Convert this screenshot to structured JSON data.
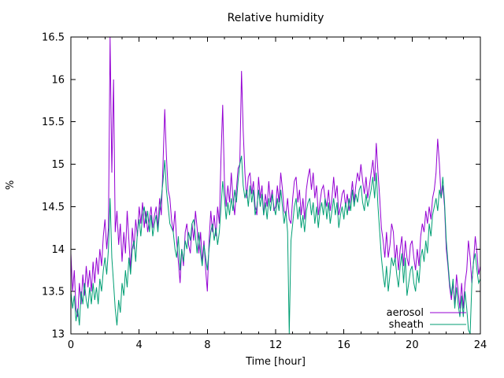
{
  "title": "Relative humidity",
  "chart_data": {
    "type": "line",
    "title": "Relative humidity",
    "xlabel": "Time [hour]",
    "ylabel": "%",
    "xlim": [
      0,
      24
    ],
    "ylim": [
      13,
      16.5
    ],
    "grid": false,
    "legend_position": "bottom-right",
    "x_major_ticks": [
      0,
      4,
      8,
      12,
      16,
      20,
      24
    ],
    "x_tick_labels": [
      "0",
      "4",
      "8",
      "12",
      "16",
      "20",
      "24"
    ],
    "x_minor_step": 1,
    "y_major_ticks": [
      13,
      13.5,
      14,
      14.5,
      15,
      15.5,
      16,
      16.5
    ],
    "y_tick_labels": [
      "13",
      "13.5",
      "14",
      "14.5",
      "15",
      "15.5",
      "16",
      "16.5"
    ],
    "x_start": 0,
    "x_step": 0.1,
    "series": [
      {
        "name": "aerosol",
        "color": "#9400D3",
        "values": [
          13.95,
          13.5,
          13.75,
          13.3,
          13.2,
          13.6,
          13.35,
          13.7,
          13.45,
          13.8,
          13.55,
          13.75,
          13.5,
          13.85,
          13.6,
          13.9,
          13.7,
          14.0,
          13.8,
          14.15,
          14.35,
          14.0,
          14.25,
          16.5,
          14.9,
          16.0,
          14.2,
          14.45,
          14.05,
          14.3,
          13.85,
          14.2,
          13.95,
          14.45,
          14.1,
          13.75,
          14.25,
          14.0,
          14.35,
          14.15,
          14.5,
          14.3,
          14.55,
          14.25,
          14.45,
          14.2,
          14.35,
          14.5,
          14.25,
          14.4,
          14.5,
          14.25,
          14.6,
          14.4,
          15.0,
          15.65,
          15.1,
          14.7,
          14.6,
          14.35,
          14.2,
          14.45,
          14.1,
          13.85,
          13.6,
          14.0,
          13.8,
          14.2,
          14.3,
          14.05,
          13.95,
          14.3,
          14.1,
          14.45,
          14.25,
          13.95,
          14.2,
          13.85,
          14.1,
          13.75,
          13.5,
          14.1,
          14.45,
          14.2,
          14.4,
          14.15,
          14.5,
          14.3,
          15.1,
          15.7,
          14.8,
          14.5,
          14.75,
          14.55,
          14.9,
          14.6,
          14.4,
          14.7,
          14.95,
          15.0,
          16.1,
          15.4,
          14.9,
          14.6,
          14.85,
          14.9,
          14.65,
          14.8,
          14.5,
          14.4,
          14.85,
          14.6,
          14.75,
          14.4,
          14.65,
          14.5,
          14.8,
          14.55,
          14.7,
          14.45,
          14.5,
          14.75,
          14.55,
          14.9,
          14.7,
          14.45,
          14.4,
          14.6,
          14.35,
          14.3,
          14.6,
          14.8,
          14.85,
          14.55,
          14.7,
          14.4,
          14.6,
          14.35,
          14.7,
          14.85,
          14.95,
          14.7,
          14.9,
          14.6,
          14.75,
          14.4,
          14.55,
          14.7,
          14.75,
          14.6,
          14.5,
          14.7,
          14.45,
          14.6,
          14.85,
          14.6,
          14.75,
          14.4,
          14.5,
          14.65,
          14.7,
          14.5,
          14.65,
          14.45,
          14.6,
          14.8,
          14.55,
          14.75,
          14.9,
          14.8,
          15.0,
          14.8,
          14.65,
          14.85,
          14.6,
          14.75,
          14.9,
          15.05,
          14.8,
          15.25,
          14.9,
          14.6,
          14.25,
          14.1,
          13.9,
          14.2,
          13.9,
          14.05,
          14.3,
          14.2,
          13.85,
          14.05,
          13.75,
          14.0,
          14.15,
          13.8,
          14.1,
          13.9,
          13.8,
          14.05,
          14.1,
          13.9,
          13.75,
          14.0,
          13.8,
          14.15,
          14.3,
          14.2,
          14.45,
          14.3,
          14.5,
          14.35,
          14.6,
          14.7,
          14.9,
          15.3,
          15.0,
          14.6,
          14.75,
          14.5,
          14.0,
          13.8,
          13.55,
          13.4,
          13.6,
          13.35,
          13.7,
          13.5,
          13.3,
          13.6,
          13.3,
          13.6,
          13.75,
          14.1,
          13.9,
          13.6,
          13.85,
          14.15,
          13.95,
          13.7,
          13.8
        ]
      },
      {
        "name": "sheath",
        "color": "#009E73",
        "values": [
          13.5,
          13.3,
          13.45,
          13.15,
          13.3,
          13.1,
          13.5,
          13.35,
          13.6,
          13.4,
          13.3,
          13.55,
          13.35,
          13.6,
          13.4,
          13.55,
          13.35,
          13.65,
          13.5,
          13.75,
          13.9,
          13.7,
          14.0,
          14.6,
          13.9,
          13.6,
          13.3,
          13.1,
          13.4,
          13.25,
          13.6,
          13.45,
          13.75,
          13.55,
          13.9,
          13.7,
          14.0,
          14.1,
          13.85,
          14.2,
          14.35,
          14.15,
          14.4,
          14.5,
          14.3,
          14.45,
          14.2,
          14.4,
          14.15,
          14.3,
          14.4,
          14.2,
          14.45,
          14.6,
          14.8,
          15.05,
          14.7,
          14.5,
          14.3,
          14.25,
          14.2,
          14.0,
          13.9,
          14.15,
          13.75,
          14.0,
          13.85,
          14.1,
          14.0,
          14.2,
          14.1,
          14.3,
          14.35,
          14.15,
          13.95,
          14.2,
          13.95,
          13.8,
          14.05,
          13.9,
          13.75,
          14.0,
          14.2,
          14.3,
          14.1,
          14.25,
          14.05,
          14.2,
          14.5,
          14.8,
          14.6,
          14.35,
          14.55,
          14.4,
          14.6,
          14.45,
          14.7,
          14.55,
          14.8,
          15.0,
          15.1,
          14.75,
          14.6,
          14.7,
          14.5,
          14.75,
          14.55,
          14.7,
          14.4,
          14.5,
          14.7,
          14.5,
          14.65,
          14.4,
          14.55,
          14.35,
          14.6,
          14.45,
          14.65,
          14.5,
          14.4,
          14.6,
          14.45,
          14.7,
          14.5,
          14.3,
          14.45,
          14.2,
          13.0,
          14.1,
          14.3,
          14.5,
          14.6,
          14.35,
          14.5,
          14.25,
          14.4,
          14.2,
          14.45,
          14.55,
          14.6,
          14.4,
          14.55,
          14.3,
          14.5,
          14.25,
          14.45,
          14.55,
          14.4,
          14.6,
          14.35,
          14.55,
          14.3,
          14.45,
          14.6,
          14.4,
          14.55,
          14.25,
          14.4,
          14.5,
          14.35,
          14.55,
          14.4,
          14.6,
          14.45,
          14.7,
          14.5,
          14.65,
          14.55,
          14.7,
          14.75,
          14.55,
          14.45,
          14.65,
          14.5,
          14.6,
          14.7,
          14.85,
          14.6,
          14.9,
          14.5,
          14.2,
          13.9,
          13.7,
          13.55,
          13.8,
          13.5,
          13.7,
          13.9,
          13.8,
          13.9,
          13.7,
          13.55,
          13.8,
          13.95,
          13.6,
          13.9,
          13.45,
          13.6,
          13.75,
          13.8,
          13.6,
          13.5,
          13.75,
          13.6,
          13.9,
          14.0,
          13.85,
          14.1,
          13.95,
          14.3,
          14.15,
          14.4,
          14.5,
          14.6,
          14.45,
          14.7,
          14.6,
          14.85,
          14.55,
          14.1,
          13.85,
          13.6,
          13.45,
          13.65,
          13.3,
          13.55,
          13.35,
          13.2,
          13.45,
          13.2,
          13.5,
          13.3,
          13.05,
          13.0,
          13.6,
          13.85,
          13.95,
          13.75,
          13.6,
          13.65
        ]
      }
    ]
  }
}
